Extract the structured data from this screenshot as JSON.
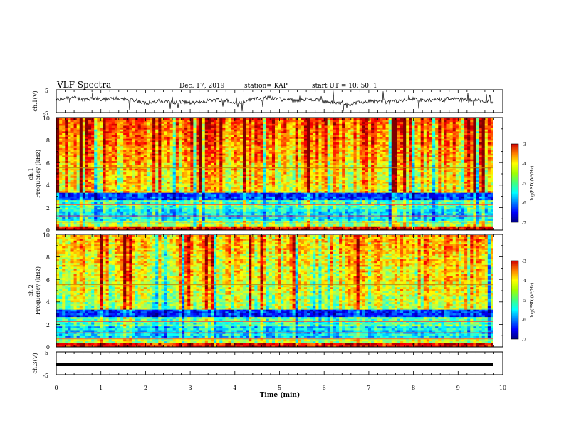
{
  "header": {
    "title": "VLF Spectra",
    "date": "Dec. 17, 2019",
    "station": "station= KAP",
    "start": "start  UT =   10: 50: 1"
  },
  "chart_data": [
    {
      "type": "line",
      "panel": "ch1-waveform",
      "ylabel": "ch.1(V)",
      "ylim": [
        -5,
        5
      ],
      "y_ticks": [
        "5",
        "-5"
      ],
      "xlim": [
        0,
        10
      ],
      "series": [
        {
          "description_color": "#000000",
          "approx_mean": 0.2,
          "approx_amplitude": 1.2,
          "approx_duration_min": 9.83
        }
      ]
    },
    {
      "type": "heatmap",
      "panel": "ch1-spectrogram",
      "ylabel": "Frequency (kHz)",
      "channel_label": "ch.1",
      "ylim": [
        0,
        10
      ],
      "y_ticks": [
        "0",
        "2",
        "4",
        "6",
        "8",
        "10"
      ],
      "xlim": [
        0,
        10
      ],
      "colorbar": {
        "label": "log(PSD)(V²/Hz)",
        "range": [
          -7,
          -3
        ],
        "ticks": [
          "-3",
          "-4",
          "-5",
          "-6",
          "-7"
        ]
      }
    },
    {
      "type": "heatmap",
      "panel": "ch2-spectrogram",
      "ylabel": "Frequency (kHz)",
      "channel_label": "ch.2",
      "ylim": [
        0,
        10
      ],
      "y_ticks": [
        "0",
        "2",
        "4",
        "6",
        "8",
        "10"
      ],
      "xlim": [
        0,
        10
      ],
      "colorbar": {
        "label": "log(PSD)(V²/Hz)",
        "range": [
          -7,
          -3
        ],
        "ticks": [
          "-3",
          "-4",
          "-5",
          "-6",
          "-7"
        ]
      }
    },
    {
      "type": "line",
      "panel": "ch3-waveform",
      "ylabel": "ch.3(V)",
      "ylim": [
        -5,
        5
      ],
      "y_ticks": [
        "5",
        "-5"
      ],
      "xlim": [
        0,
        10
      ],
      "series": [
        {
          "description_color": "#000000",
          "approx_value": 0,
          "approx_duration_min": 9.83
        }
      ]
    }
  ],
  "x_axis": {
    "label": "Time (min)",
    "ticks": [
      "0",
      "1",
      "2",
      "3",
      "4",
      "5",
      "6",
      "7",
      "8",
      "9",
      "10"
    ]
  },
  "colors": {
    "high": "#ff0000",
    "mid": "#00ff00",
    "low": "#0000ff"
  }
}
